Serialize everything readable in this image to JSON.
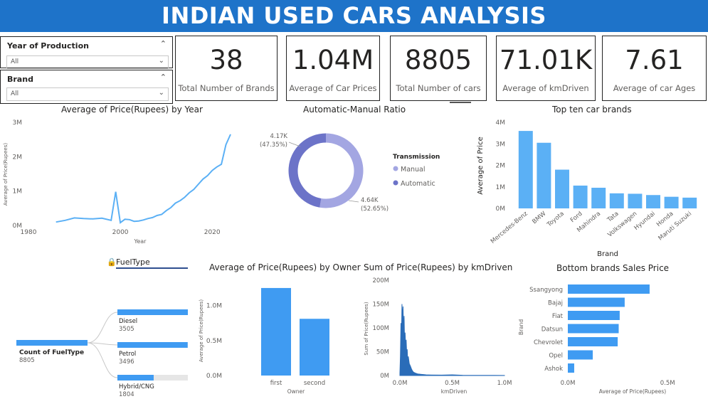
{
  "header": {
    "title": "INDIAN USED CARS ANALYSIS"
  },
  "slicers": [
    {
      "title": "Year of Production",
      "value": "All"
    },
    {
      "title": "Brand",
      "value": "All"
    }
  ],
  "cards": [
    {
      "value": "38",
      "label": "Total Number of Brands"
    },
    {
      "value": "1.04M",
      "label": "Average of Car Prices"
    },
    {
      "value": "8805",
      "label": "Total Number of cars"
    },
    {
      "value": "71.01K",
      "label": "Average of kmDriven"
    },
    {
      "value": "7.61",
      "label": "Average of car Ages"
    }
  ],
  "visuals": {
    "year_line": {
      "title": "Average of Price(Rupees) by Year"
    },
    "donut": {
      "title": "Automatic-Manual Ratio"
    },
    "top_brands": {
      "title": "Top ten car brands"
    },
    "fuel_tree": {
      "title": "FuelType"
    },
    "owner_bar": {
      "title": "Average of Price(Rupees) by Owner"
    },
    "km_area": {
      "title": "Sum of Price(Rupees) by kmDriven"
    },
    "bottom_brands": {
      "title": "Bottom brands Sales Price"
    }
  },
  "colors": {
    "banner": "#1e73c9",
    "accent": "#5bb0f5",
    "bar": "#3f9bf2",
    "donut_manual": "#a3a6e2",
    "donut_auto": "#6c73c8",
    "area": "#2a6cb8"
  },
  "chart_data": [
    {
      "type": "line",
      "title": "Average of Price(Rupees) by Year",
      "xlabel": "Year",
      "ylabel": "Average of Price(Rupees)",
      "xlim": [
        1980,
        2024
      ],
      "ylim": [
        0,
        3000000
      ],
      "xticks": [
        "1980",
        "2000",
        "2020"
      ],
      "yticks": [
        "0M",
        "1M",
        "2M",
        "3M"
      ],
      "x": [
        1986,
        1988,
        1990,
        1992,
        1994,
        1996,
        1998,
        1999,
        2000,
        2001,
        2002,
        2003,
        2004,
        2005,
        2006,
        2007,
        2008,
        2009,
        2010,
        2011,
        2012,
        2013,
        2014,
        2015,
        2016,
        2017,
        2018,
        2019,
        2020,
        2021,
        2022,
        2023,
        2024
      ],
      "y": [
        100000,
        150000,
        220000,
        200000,
        190000,
        210000,
        150000,
        980000,
        80000,
        180000,
        170000,
        120000,
        130000,
        160000,
        200000,
        230000,
        290000,
        320000,
        430000,
        520000,
        650000,
        720000,
        820000,
        950000,
        1050000,
        1200000,
        1350000,
        1450000,
        1600000,
        1700000,
        1780000,
        2350000,
        2650000
      ]
    },
    {
      "type": "pie",
      "title": "Automatic-Manual Ratio",
      "legend_title": "Transmission",
      "legend_position": "right",
      "slices": [
        {
          "name": "Manual",
          "value": 4640,
          "label": "4.64K",
          "pct": "(52.65%)"
        },
        {
          "name": "Automatic",
          "value": 4170,
          "label": "4.17K",
          "pct": "(47.35%)"
        }
      ]
    },
    {
      "type": "bar",
      "title": "Top ten car brands",
      "xlabel": "Brand",
      "ylabel": "Average of Price",
      "ylim": [
        0,
        4000000
      ],
      "yticks": [
        "0M",
        "1M",
        "2M",
        "3M",
        "4M"
      ],
      "categories": [
        "Mercedes-Benz",
        "BMW",
        "Toyota",
        "Ford",
        "Mahindra",
        "Tata",
        "Volkswagen",
        "Hyundai",
        "Honda",
        "Maruti Suzuki"
      ],
      "values": [
        3600000,
        3050000,
        1800000,
        1060000,
        960000,
        700000,
        680000,
        620000,
        540000,
        500000
      ]
    },
    {
      "type": "bar",
      "title": "FuelType",
      "root": {
        "label": "Count of FuelType",
        "value": "8805"
      },
      "max": 3505,
      "categories": [
        "Diesel",
        "Petrol",
        "Hybrid/CNG"
      ],
      "values": [
        3505,
        3496,
        1804
      ],
      "value_labels": [
        "3505",
        "3496",
        "1804"
      ]
    },
    {
      "type": "bar",
      "title": "Average of Price(Rupees) by Owner",
      "xlabel": "Owner",
      "ylabel": "Average of Price(Rupees)",
      "ylim": [
        0,
        1300000
      ],
      "yticks": [
        "0.0M",
        "0.5M",
        "1.0M"
      ],
      "categories": [
        "first",
        "second"
      ],
      "values": [
        1250000,
        810000
      ]
    },
    {
      "type": "area",
      "title": "Sum of Price(Rupees) by kmDriven",
      "xlabel": "kmDriven",
      "ylabel": "Sum of Price(Rupees)",
      "xlim": [
        0,
        1000000
      ],
      "ylim": [
        0,
        200000000
      ],
      "xticks": [
        "0.0M",
        "0.5M",
        "1.0M"
      ],
      "yticks": [
        "0M",
        "50M",
        "100M",
        "150M",
        "200M"
      ],
      "x": [
        0,
        5000,
        10000,
        15000,
        20000,
        25000,
        30000,
        35000,
        40000,
        45000,
        50000,
        55000,
        60000,
        65000,
        70000,
        75000,
        80000,
        90000,
        100000,
        110000,
        120000,
        130000,
        150000,
        170000,
        200000,
        250000,
        300000,
        400000,
        500000,
        600000,
        700000,
        800000,
        900000,
        1000000
      ],
      "y": [
        5000000,
        40000000,
        110000000,
        80000000,
        150000000,
        120000000,
        145000000,
        95000000,
        125000000,
        70000000,
        90000000,
        60000000,
        75000000,
        45000000,
        55000000,
        30000000,
        40000000,
        25000000,
        20000000,
        14000000,
        10000000,
        7000000,
        5000000,
        3500000,
        2500000,
        1500000,
        1200000,
        900000,
        1500000,
        600000,
        500000,
        400000,
        300000,
        200000
      ]
    },
    {
      "type": "bar",
      "title": "Bottom brands Sales Price",
      "xlabel": "Average of Price(Rupees)",
      "ylabel": "Brand",
      "xlim": [
        0,
        560000
      ],
      "xticks": [
        "0.0M",
        "0.5M"
      ],
      "categories": [
        "Ssangyong",
        "Bajaj",
        "Fiat",
        "Datsun",
        "Chevrolet",
        "Opel",
        "Ashok"
      ],
      "values": [
        410000,
        285000,
        260000,
        255000,
        250000,
        125000,
        32000
      ]
    }
  ]
}
